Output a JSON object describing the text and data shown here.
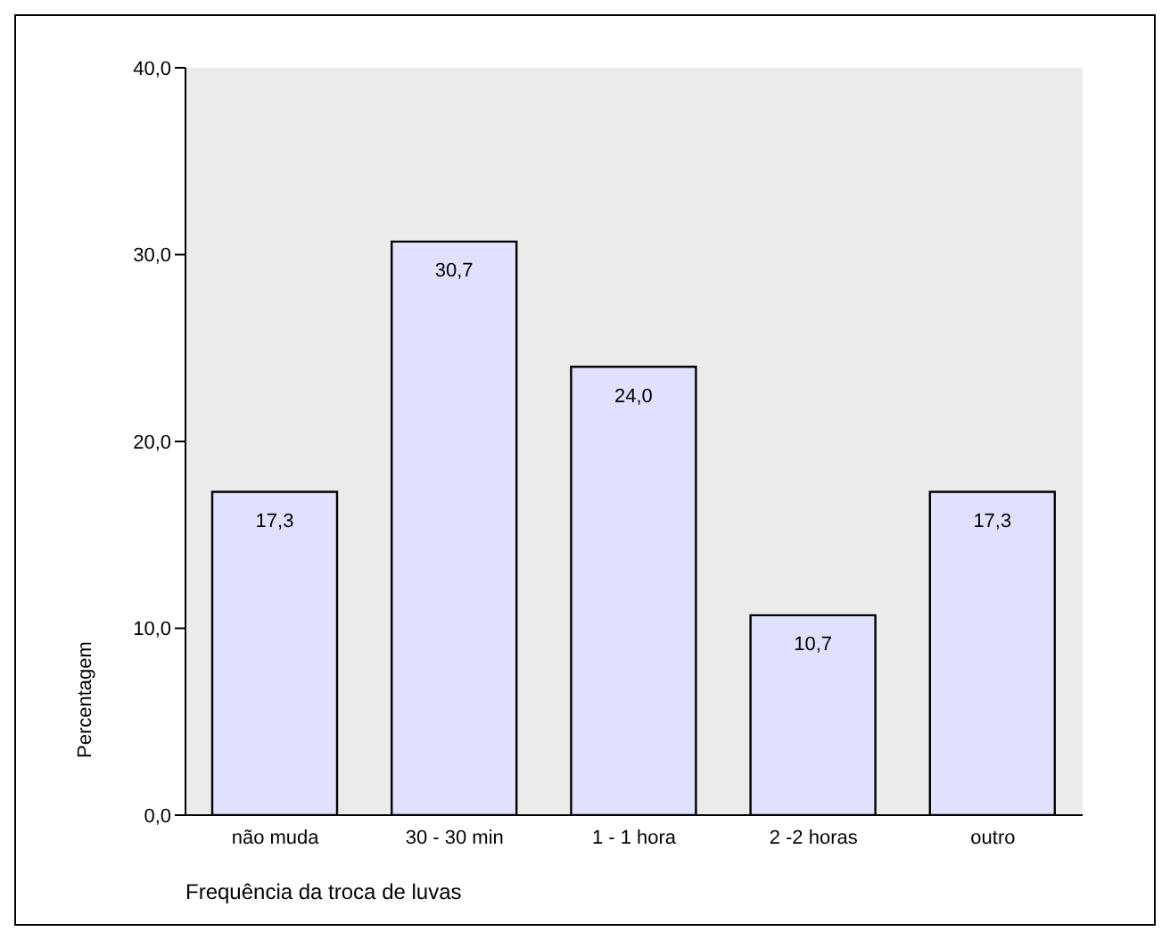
{
  "chart_data": {
    "type": "bar",
    "xlabel": "Frequência da troca de luvas",
    "ylabel": "Percentagem",
    "categories": [
      "não muda",
      "30 - 30 min",
      "1 - 1 hora",
      "2 -2 horas",
      "outro"
    ],
    "values": [
      17.3,
      30.7,
      24.0,
      10.7,
      17.3
    ],
    "value_labels": [
      "17,3",
      "30,7",
      "24,0",
      "10,7",
      "17,3"
    ],
    "color": "#e0e0ff",
    "ylim": [
      0,
      40
    ],
    "yticks": [
      {
        "value": 0,
        "label": "0,0"
      },
      {
        "value": 10,
        "label": "10,0"
      },
      {
        "value": 20,
        "label": "20,0"
      },
      {
        "value": 30,
        "label": "30,0"
      },
      {
        "value": 40,
        "label": "40,0"
      }
    ],
    "grid": false,
    "legend": false
  }
}
